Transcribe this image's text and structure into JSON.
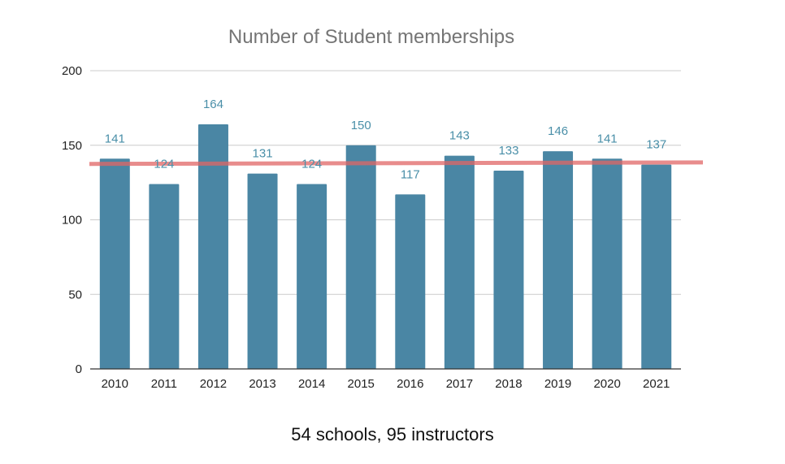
{
  "chart_data": {
    "type": "bar",
    "title": "Number of Student memberships",
    "xlabel": "",
    "ylabel": "",
    "categories": [
      "2010",
      "2011",
      "2012",
      "2013",
      "2014",
      "2015",
      "2016",
      "2017",
      "2018",
      "2019",
      "2020",
      "2021"
    ],
    "values": [
      141,
      124,
      164,
      131,
      124,
      150,
      117,
      143,
      133,
      146,
      141,
      137
    ],
    "data_labels": [
      "141",
      "124",
      "164",
      "131",
      "124",
      "150",
      "117",
      "143",
      "133",
      "146",
      "141",
      "137"
    ],
    "ylim": [
      0,
      200
    ],
    "yticks": [
      0,
      50,
      100,
      150,
      200
    ],
    "ytick_labels": [
      "0",
      "50",
      "100",
      "150",
      "200"
    ],
    "grid": true,
    "legend": "none",
    "trendline": {
      "type": "linear",
      "start": 137.5,
      "end": 138.5,
      "color": "#e06666"
    },
    "colors": {
      "bar": "#4a86a4",
      "data_label": "#4a8fa8",
      "gridline": "#cccccc",
      "axis": "#333333"
    }
  },
  "caption": "54 schools, 95 instructors"
}
